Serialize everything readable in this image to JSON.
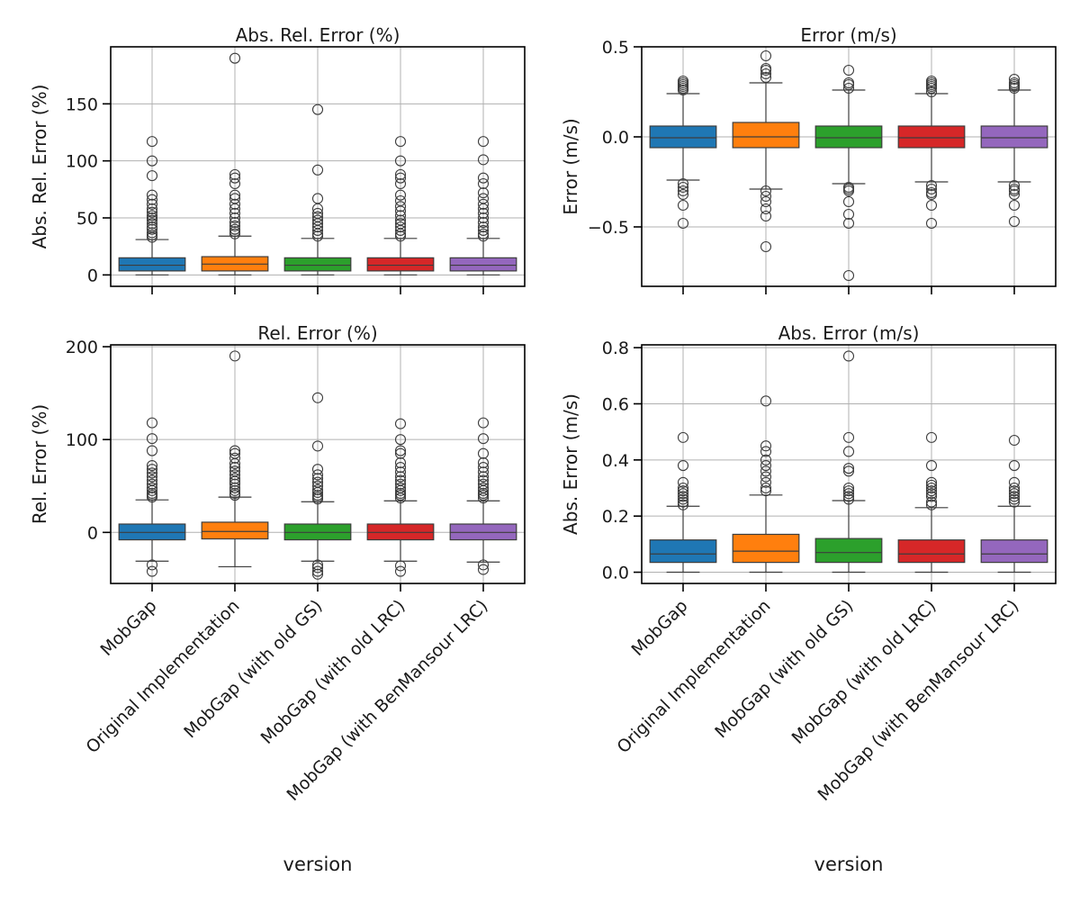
{
  "categories": [
    "MobGap",
    "Original Implementation",
    "MobGap (with old GS)",
    "MobGap (with old LRC)",
    "MobGap (with BenMansour LRC)"
  ],
  "colors": [
    "#1f77b4",
    "#ff7f0e",
    "#2ca02c",
    "#d62728",
    "#9467bd"
  ],
  "chart_data": [
    {
      "type": "box",
      "title": "Abs. Rel. Error (%)",
      "ylabel": "Abs. Rel. Error (%)",
      "xlabel": "",
      "ylim": [
        -10,
        200
      ],
      "yticks": [
        0,
        50,
        100,
        150
      ],
      "show_xticklabels": false,
      "grid": true,
      "series": [
        {
          "q1": 3.5,
          "median": 8.5,
          "q3": 15,
          "whisker_low": 0,
          "whisker_high": 31,
          "outliers": [
            33,
            35,
            37,
            40,
            42,
            45,
            48,
            50,
            52,
            55,
            58,
            62,
            66,
            70,
            87,
            100,
            117
          ]
        },
        {
          "q1": 3.5,
          "median": 9.5,
          "q3": 16,
          "whisker_low": 0,
          "whisker_high": 34,
          "outliers": [
            36,
            38,
            40,
            43,
            46,
            50,
            54,
            58,
            62,
            67,
            70,
            80,
            85,
            88,
            190
          ]
        },
        {
          "q1": 3.5,
          "median": 8.5,
          "q3": 15,
          "whisker_low": 0,
          "whisker_high": 32,
          "outliers": [
            34,
            36,
            39,
            42,
            45,
            48,
            51,
            54,
            58,
            67,
            92,
            145
          ]
        },
        {
          "q1": 3.5,
          "median": 8.5,
          "q3": 15,
          "whisker_low": 0,
          "whisker_high": 32,
          "outliers": [
            34,
            36,
            39,
            42,
            45,
            48,
            52,
            56,
            60,
            65,
            70,
            80,
            85,
            88,
            100,
            117
          ]
        },
        {
          "q1": 3.5,
          "median": 8.5,
          "q3": 15,
          "whisker_low": 0,
          "whisker_high": 32,
          "outliers": [
            34,
            36,
            39,
            42,
            46,
            50,
            54,
            58,
            62,
            67,
            72,
            80,
            85,
            101,
            117
          ]
        }
      ]
    },
    {
      "type": "box",
      "title": "Error (m/s)",
      "ylabel": "Error (m/s)",
      "xlabel": "",
      "ylim": [
        -0.83,
        0.5
      ],
      "yticks": [
        -0.5,
        0.0,
        0.5
      ],
      "ytick_labels": [
        "−0.5",
        "0.0",
        "0.5"
      ],
      "show_xticklabels": false,
      "grid": true,
      "series": [
        {
          "q1": -0.06,
          "median": -0.005,
          "q3": 0.06,
          "whisker_low": -0.24,
          "whisker_high": 0.24,
          "outliers": [
            0.26,
            0.27,
            0.28,
            0.29,
            0.3,
            0.31,
            -0.26,
            -0.28,
            -0.3,
            -0.32,
            -0.38,
            -0.48
          ]
        },
        {
          "q1": -0.06,
          "median": 0.0,
          "q3": 0.08,
          "whisker_low": -0.29,
          "whisker_high": 0.3,
          "outliers": [
            0.33,
            0.35,
            0.37,
            0.38,
            0.45,
            -0.3,
            -0.33,
            -0.36,
            -0.4,
            -0.44,
            -0.61
          ]
        },
        {
          "q1": -0.06,
          "median": -0.005,
          "q3": 0.06,
          "whisker_low": -0.26,
          "whisker_high": 0.26,
          "outliers": [
            0.27,
            0.29,
            0.3,
            0.37,
            -0.28,
            -0.29,
            -0.3,
            -0.36,
            -0.43,
            -0.48,
            -0.77
          ]
        },
        {
          "q1": -0.06,
          "median": -0.005,
          "q3": 0.06,
          "whisker_low": -0.25,
          "whisker_high": 0.24,
          "outliers": [
            0.25,
            0.27,
            0.28,
            0.29,
            0.3,
            0.31,
            -0.27,
            -0.29,
            -0.31,
            -0.32,
            -0.38,
            -0.48
          ]
        },
        {
          "q1": -0.06,
          "median": -0.005,
          "q3": 0.06,
          "whisker_low": -0.25,
          "whisker_high": 0.26,
          "outliers": [
            0.27,
            0.28,
            0.29,
            0.3,
            0.32,
            -0.27,
            -0.29,
            -0.3,
            -0.32,
            -0.38,
            -0.47
          ]
        }
      ]
    },
    {
      "type": "box",
      "title": "Rel. Error (%)",
      "ylabel": "Rel. Error (%)",
      "xlabel": "",
      "ylim": [
        -55,
        202
      ],
      "yticks": [
        0,
        100,
        200
      ],
      "show_xticklabels": true,
      "grid": true,
      "series": [
        {
          "q1": -8,
          "median": 0,
          "q3": 9,
          "whisker_low": -31,
          "whisker_high": 35,
          "outliers": [
            38,
            40,
            42,
            45,
            48,
            52,
            56,
            60,
            64,
            68,
            72,
            88,
            101,
            118,
            -35,
            -42
          ]
        },
        {
          "q1": -7,
          "median": 1,
          "q3": 11,
          "whisker_low": -37,
          "whisker_high": 38,
          "outliers": [
            40,
            42,
            45,
            48,
            52,
            55,
            58,
            62,
            66,
            70,
            74,
            80,
            85,
            88,
            190
          ]
        },
        {
          "q1": -8,
          "median": 0,
          "q3": 9,
          "whisker_low": -31,
          "whisker_high": 33,
          "outliers": [
            36,
            38,
            40,
            43,
            46,
            50,
            54,
            58,
            62,
            68,
            93,
            145,
            -35,
            -38,
            -42,
            -45
          ]
        },
        {
          "q1": -8,
          "median": 0,
          "q3": 9,
          "whisker_low": -31,
          "whisker_high": 34,
          "outliers": [
            37,
            40,
            42,
            45,
            48,
            52,
            56,
            60,
            65,
            70,
            75,
            85,
            88,
            100,
            117,
            -36,
            -42
          ]
        },
        {
          "q1": -8,
          "median": 0,
          "q3": 9,
          "whisker_low": -32,
          "whisker_high": 34,
          "outliers": [
            37,
            40,
            42,
            45,
            48,
            52,
            56,
            60,
            65,
            70,
            75,
            85,
            101,
            118,
            -35,
            -40
          ]
        }
      ]
    },
    {
      "type": "box",
      "title": "Abs. Error (m/s)",
      "ylabel": "Abs. Error (m/s)",
      "xlabel": "version",
      "ylim": [
        -0.04,
        0.81
      ],
      "yticks": [
        0.0,
        0.2,
        0.4,
        0.6,
        0.8
      ],
      "ytick_labels": [
        "0.0",
        "0.2",
        "0.4",
        "0.6",
        "0.8"
      ],
      "show_xticklabels": true,
      "grid": true,
      "series": [
        {
          "q1": 0.035,
          "median": 0.065,
          "q3": 0.115,
          "whisker_low": 0,
          "whisker_high": 0.235,
          "outliers": [
            0.24,
            0.25,
            0.26,
            0.27,
            0.28,
            0.29,
            0.3,
            0.32,
            0.38,
            0.48
          ]
        },
        {
          "q1": 0.035,
          "median": 0.075,
          "q3": 0.135,
          "whisker_low": 0,
          "whisker_high": 0.275,
          "outliers": [
            0.29,
            0.3,
            0.32,
            0.34,
            0.36,
            0.38,
            0.4,
            0.43,
            0.45,
            0.61
          ]
        },
        {
          "q1": 0.035,
          "median": 0.07,
          "q3": 0.12,
          "whisker_low": 0,
          "whisker_high": 0.255,
          "outliers": [
            0.26,
            0.27,
            0.28,
            0.29,
            0.3,
            0.36,
            0.37,
            0.43,
            0.48,
            0.77
          ]
        },
        {
          "q1": 0.035,
          "median": 0.065,
          "q3": 0.115,
          "whisker_low": 0,
          "whisker_high": 0.23,
          "outliers": [
            0.24,
            0.25,
            0.27,
            0.28,
            0.29,
            0.3,
            0.31,
            0.32,
            0.38,
            0.48
          ]
        },
        {
          "q1": 0.035,
          "median": 0.065,
          "q3": 0.115,
          "whisker_low": 0,
          "whisker_high": 0.235,
          "outliers": [
            0.25,
            0.26,
            0.27,
            0.28,
            0.29,
            0.3,
            0.32,
            0.38,
            0.47
          ]
        }
      ]
    }
  ]
}
